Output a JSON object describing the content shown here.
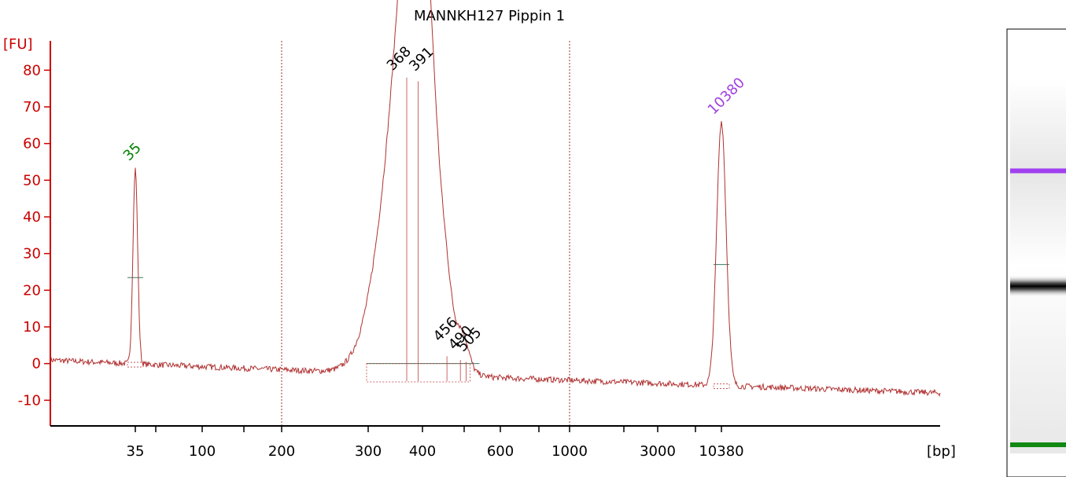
{
  "chart_data": {
    "type": "line",
    "title": "MANNKH127 Pippin 1",
    "ylabel": "[FU]",
    "xlabel": "[bp]",
    "ylim": [
      -17,
      88
    ],
    "yticks": [
      80,
      70,
      60,
      50,
      40,
      30,
      20,
      10,
      0,
      -10
    ],
    "x_tick_labels": [
      "35",
      "",
      "100",
      "",
      "200",
      "300",
      "400",
      "",
      "600",
      "",
      "1000",
      "",
      "3000",
      "",
      "10380"
    ],
    "x_positions": [
      35,
      46,
      100,
      150,
      200,
      300,
      400,
      500,
      600,
      700,
      1000,
      2000,
      3000,
      4000,
      10380
    ],
    "gridlines_at": [
      200,
      1000
    ],
    "peaks": [
      {
        "label": "35",
        "x": 35,
        "y": 53,
        "width": 3,
        "color": "#008000",
        "type": "marker"
      },
      {
        "label": "368",
        "x": 368,
        "y": 78,
        "width": 30,
        "color": "#000000",
        "type": "sample"
      },
      {
        "label": "391",
        "x": 391,
        "y": 77,
        "width": 18,
        "color": "#000000",
        "type": "sample"
      },
      {
        "label": "456",
        "x": 456,
        "y": 2,
        "width": 6,
        "color": "#000000",
        "type": "sample"
      },
      {
        "label": "490",
        "x": 490,
        "y": 1,
        "width": 6,
        "color": "#000000",
        "type": "sample"
      },
      {
        "label": "505",
        "x": 505,
        "y": 0.5,
        "width": 6,
        "color": "#000000",
        "type": "sample"
      },
      {
        "label": "10380",
        "x": 10380,
        "y": 66,
        "width": 6,
        "color": "#a040e0",
        "type": "marker"
      }
    ],
    "colors": {
      "trace": "#b03030",
      "axis": "#cc0000",
      "fit": "#3a7a60"
    }
  },
  "gel": {
    "bands": [
      {
        "position": 0.32,
        "color": "#a040f0",
        "kind": "upper-marker"
      },
      {
        "position": 0.72,
        "color": "#111111",
        "kind": "sample"
      },
      {
        "position": 1.27,
        "color": "#118811",
        "kind": "lower-marker"
      }
    ]
  }
}
